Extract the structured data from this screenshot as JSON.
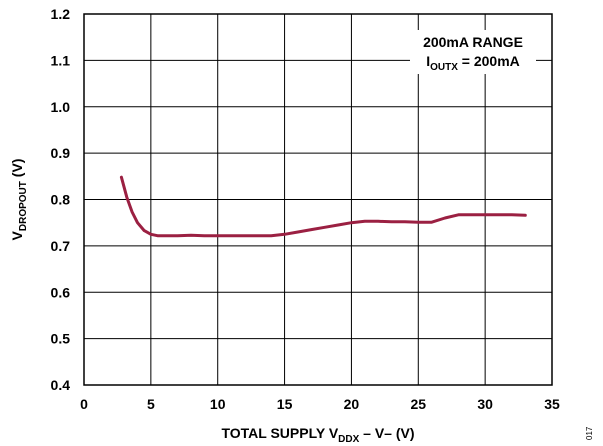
{
  "chart_data": {
    "type": "line",
    "title": "",
    "xlabel": {
      "prefix": "TOTAL SUPPLY V",
      "sub": "DDX",
      "suffix": " – V– (V)"
    },
    "ylabel": {
      "prefix": "V",
      "sub": "DROPOUT",
      "suffix": " (V)"
    },
    "xlim": [
      0,
      35
    ],
    "ylim": [
      0.4,
      1.2
    ],
    "x_ticks": [
      0,
      5,
      10,
      15,
      20,
      25,
      30,
      35
    ],
    "y_ticks": [
      0.4,
      0.5,
      0.6,
      0.7,
      0.8,
      0.9,
      1.0,
      1.1,
      1.2
    ],
    "x_tick_labels": [
      "0",
      "5",
      "10",
      "15",
      "20",
      "25",
      "30",
      "35"
    ],
    "y_tick_labels": [
      "0.4",
      "0.5",
      "0.6",
      "0.7",
      "0.8",
      "0.9",
      "1.0",
      "1.1",
      "1.2"
    ],
    "grid": true,
    "annotation": {
      "line1": "200mA RANGE",
      "line2_prefix": "I",
      "line2_sub": "OUTX",
      "line2_suffix": " = 200mA",
      "placement": "top-right"
    },
    "series": [
      {
        "color": "#9b2042",
        "x": [
          2.8,
          3.2,
          3.6,
          4.0,
          4.5,
          5.0,
          5.5,
          6.0,
          7.0,
          8.0,
          9.0,
          10.0,
          11.0,
          12.0,
          13.0,
          14.0,
          15.0,
          16.0,
          17.0,
          18.0,
          19.0,
          20.0,
          21.0,
          22.0,
          23.0,
          24.0,
          25.0,
          26.0,
          27.0,
          28.0,
          29.0,
          30.0,
          31.0,
          32.0,
          33.0
        ],
        "y": [
          0.848,
          0.805,
          0.773,
          0.75,
          0.733,
          0.725,
          0.722,
          0.722,
          0.722,
          0.723,
          0.722,
          0.722,
          0.722,
          0.722,
          0.722,
          0.722,
          0.725,
          0.73,
          0.735,
          0.74,
          0.745,
          0.75,
          0.753,
          0.753,
          0.752,
          0.752,
          0.751,
          0.751,
          0.76,
          0.767,
          0.767,
          0.767,
          0.767,
          0.767,
          0.766
        ]
      }
    ]
  },
  "figure_code": "017"
}
